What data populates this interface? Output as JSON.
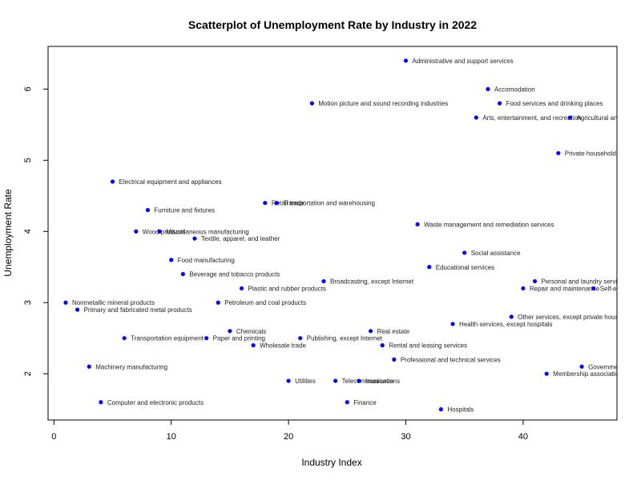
{
  "chart_data": {
    "type": "scatter",
    "title": "Scatterplot of Unemployment Rate by Industry in 2022",
    "xlabel": "Industry Index",
    "ylabel": "Unemployment Rate",
    "xlim": [
      -0.5,
      48
    ],
    "ylim": [
      1.35,
      6.6
    ],
    "xticks": [
      0,
      10,
      20,
      30,
      40
    ],
    "yticks": [
      2,
      3,
      4,
      5,
      6
    ],
    "grid": false,
    "point_color": "#0000ff",
    "points": [
      {
        "x": 1,
        "y": 3.0,
        "label": "Nonmetallic mineral products"
      },
      {
        "x": 2,
        "y": 2.9,
        "label": "Primary and fabricated metal products"
      },
      {
        "x": 3,
        "y": 2.1,
        "label": "Machinery manufacturing"
      },
      {
        "x": 4,
        "y": 1.6,
        "label": "Computer and electronic products"
      },
      {
        "x": 5,
        "y": 4.7,
        "label": "Electrical equipment and appliances"
      },
      {
        "x": 6,
        "y": 2.5,
        "label": "Transportation equipment"
      },
      {
        "x": 7,
        "y": 4.0,
        "label": "Wood products"
      },
      {
        "x": 8,
        "y": 4.3,
        "label": "Furniture and fixtures"
      },
      {
        "x": 9,
        "y": 4.0,
        "label": "Miscellaneous manufacturing"
      },
      {
        "x": 10,
        "y": 3.6,
        "label": "Food manufacturing"
      },
      {
        "x": 11,
        "y": 3.4,
        "label": "Beverage and tobacco products"
      },
      {
        "x": 12,
        "y": 3.9,
        "label": "Textile, apparel, and leather"
      },
      {
        "x": 13,
        "y": 2.5,
        "label": "Paper and printing"
      },
      {
        "x": 14,
        "y": 3.0,
        "label": "Petroleum and coal products"
      },
      {
        "x": 15,
        "y": 2.6,
        "label": "Chemicals"
      },
      {
        "x": 16,
        "y": 3.2,
        "label": "Plastic and rubber products"
      },
      {
        "x": 17,
        "y": 2.4,
        "label": "Wholesale trade"
      },
      {
        "x": 18,
        "y": 4.4,
        "label": "Retail trade"
      },
      {
        "x": 19,
        "y": 4.4,
        "label": "Transportation and warehousing"
      },
      {
        "x": 20,
        "y": 1.9,
        "label": "Utilities"
      },
      {
        "x": 21,
        "y": 2.5,
        "label": "Publishing, except Internet"
      },
      {
        "x": 22,
        "y": 5.8,
        "label": "Motion picture and sound recording industries"
      },
      {
        "x": 23,
        "y": 3.3,
        "label": "Broadcasting, except Internet"
      },
      {
        "x": 24,
        "y": 1.9,
        "label": "Telecommunications"
      },
      {
        "x": 25,
        "y": 1.6,
        "label": "Finance"
      },
      {
        "x": 26,
        "y": 1.9,
        "label": "Insurance"
      },
      {
        "x": 27,
        "y": 2.6,
        "label": "Real estate"
      },
      {
        "x": 28,
        "y": 2.4,
        "label": "Rental and leasing services"
      },
      {
        "x": 29,
        "y": 2.2,
        "label": "Professional and technical services"
      },
      {
        "x": 30,
        "y": 6.4,
        "label": "Administrative and support services"
      },
      {
        "x": 31,
        "y": 4.1,
        "label": "Waste management and remediation services"
      },
      {
        "x": 32,
        "y": 3.5,
        "label": "Educational services"
      },
      {
        "x": 33,
        "y": 1.5,
        "label": "Hospitals"
      },
      {
        "x": 34,
        "y": 2.7,
        "label": "Health services, except hospitals"
      },
      {
        "x": 35,
        "y": 3.7,
        "label": "Social assistance"
      },
      {
        "x": 36,
        "y": 5.6,
        "label": "Arts, entertainment, and recreation"
      },
      {
        "x": 37,
        "y": 6.0,
        "label": "Accomodation"
      },
      {
        "x": 38,
        "y": 5.8,
        "label": "Food services and drinking places"
      },
      {
        "x": 39,
        "y": 2.8,
        "label": "Other services, except private households"
      },
      {
        "x": 40,
        "y": 3.2,
        "label": "Repair and maintenance"
      },
      {
        "x": 41,
        "y": 3.3,
        "label": "Personal and laundry services"
      },
      {
        "x": 42,
        "y": 2.0,
        "label": "Membership associations and organizations"
      },
      {
        "x": 43,
        "y": 5.1,
        "label": "Private households"
      },
      {
        "x": 44,
        "y": 5.6,
        "label": "Agricultural and related industries"
      },
      {
        "x": 45,
        "y": 2.1,
        "label": "Government workers"
      },
      {
        "x": 46,
        "y": 3.2,
        "label": "Self-employed workers"
      }
    ]
  }
}
